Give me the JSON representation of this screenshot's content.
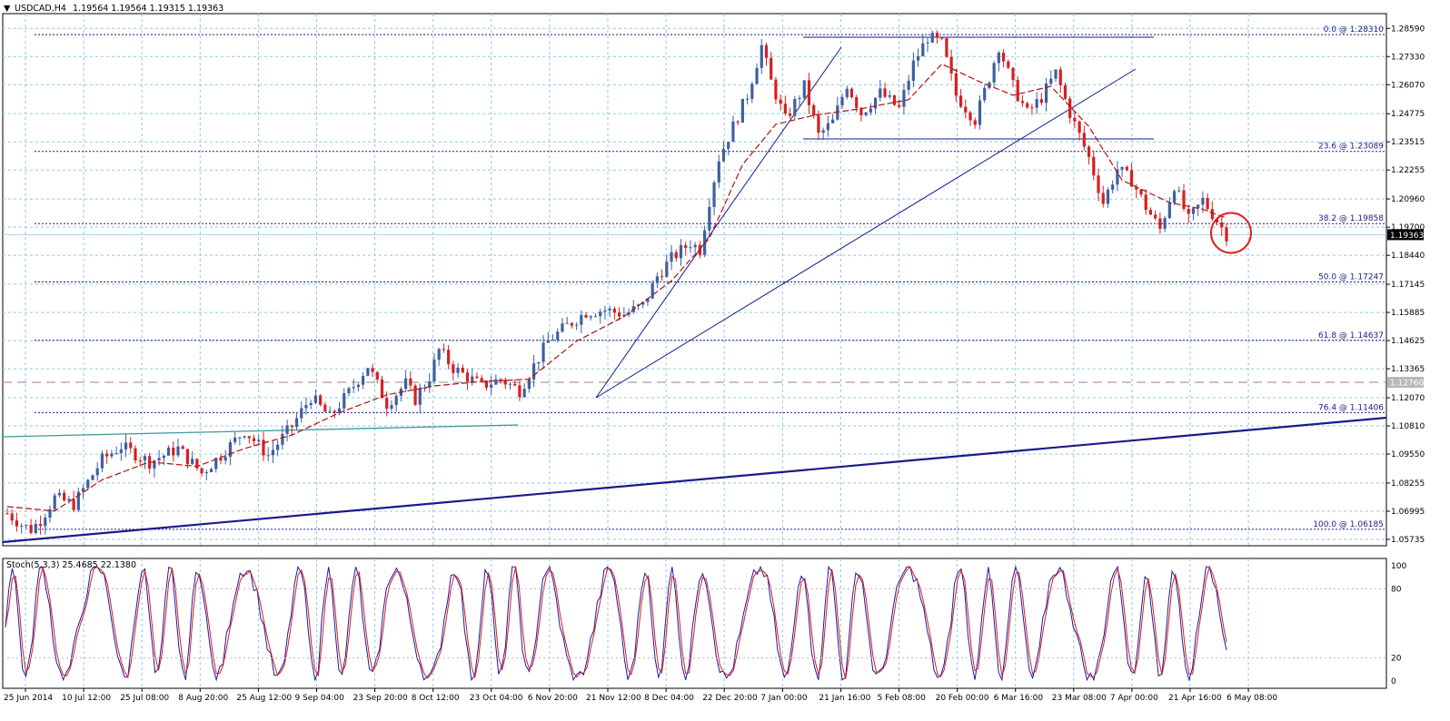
{
  "header": {
    "symbol_label": "USDCAD,H4",
    "ohlc_label": "1.19564 1.19564 1.19315 1.19363",
    "dropdown_glyph": "▼"
  },
  "stochastic": {
    "label": "Stoch(5,3,3) 25.4685 22.1380",
    "levels": [
      "100",
      "80",
      "20",
      "0"
    ]
  },
  "colors": {
    "background": "#ffffff",
    "grid": "#8ec9e3",
    "bull_candle": "#3f5f9f",
    "bear_candle": "#d42020",
    "moving_average": "#b01010",
    "fibo_line": "#1a1a8c",
    "trendline": "#1a1a8c",
    "channel_line": "#3a9a9a",
    "highlight_circle": "#e02020",
    "stoch_main": "#1a1aa8",
    "stoch_signal": "#d42020"
  },
  "chart_data": {
    "type": "candlestick",
    "symbol": "USDCAD",
    "timeframe": "H4",
    "x_tick_labels": [
      "25 Jun 2014",
      "10 Jul 12:00",
      "25 Jul 08:00",
      "8 Aug 20:00",
      "25 Aug 12:00",
      "9 Sep 04:00",
      "23 Sep 20:00",
      "8 Oct 12:00",
      "23 Oct 04:00",
      "6 Nov 20:00",
      "21 Nov 12:00",
      "8 Dec 04:00",
      "22 Dec 20:00",
      "7 Jan 00:00",
      "21 Jan 16:00",
      "5 Feb 08:00",
      "20 Feb 00:00",
      "6 Mar 16:00",
      "23 Mar 08:00",
      "7 Apr 00:00",
      "21 Apr 16:00",
      "6 May 08:00"
    ],
    "y_tick_labels": [
      "1.28590",
      "1.27330",
      "1.26070",
      "1.24775",
      "1.23515",
      "1.22255",
      "1.20960",
      "1.19700",
      "1.18440",
      "1.17145",
      "1.15885",
      "1.14625",
      "1.13365",
      "1.12070",
      "1.10810",
      "1.09550",
      "1.08255",
      "1.06995",
      "1.05735"
    ],
    "ylim": [
      1.0545,
      1.2925
    ],
    "current_price_label": "1.19363",
    "reference_price_label": "1.12760",
    "fibonacci_levels": [
      {
        "label": "0.0 @ 1.28310",
        "price": 1.2831
      },
      {
        "label": "23.6 @ 1.23089",
        "price": 1.23089
      },
      {
        "label": "38.2 @ 1.19858",
        "price": 1.19858
      },
      {
        "label": "50.0 @ 1.17247",
        "price": 1.17247
      },
      {
        "label": "61.8 @ 1.14637",
        "price": 1.14637
      },
      {
        "label": "76.4 @ 1.11406",
        "price": 1.11406
      },
      {
        "label": "100.0 @ 1.06185",
        "price": 1.06185
      }
    ],
    "price_path": [
      [
        0,
        1.069
      ],
      [
        3,
        1.064
      ],
      [
        5,
        1.0618
      ],
      [
        7,
        1.066
      ],
      [
        10,
        1.076
      ],
      [
        14,
        1.073
      ],
      [
        20,
        1.093
      ],
      [
        24,
        1.099
      ],
      [
        30,
        1.092
      ],
      [
        36,
        1.098
      ],
      [
        41,
        1.087
      ],
      [
        45,
        1.095
      ],
      [
        50,
        1.106
      ],
      [
        55,
        1.095
      ],
      [
        60,
        1.108
      ],
      [
        64,
        1.121
      ],
      [
        68,
        1.112
      ],
      [
        72,
        1.123
      ],
      [
        76,
        1.135
      ],
      [
        80,
        1.118
      ],
      [
        84,
        1.127
      ],
      [
        86,
        1.12
      ],
      [
        89,
        1.13
      ],
      [
        91,
        1.142
      ],
      [
        94,
        1.134
      ],
      [
        100,
        1.126
      ],
      [
        104,
        1.129
      ],
      [
        108,
        1.124
      ],
      [
        111,
        1.135
      ],
      [
        114,
        1.146
      ],
      [
        118,
        1.153
      ],
      [
        122,
        1.159
      ],
      [
        126,
        1.16
      ],
      [
        130,
        1.158
      ],
      [
        134,
        1.162
      ],
      [
        137,
        1.175
      ],
      [
        140,
        1.183
      ],
      [
        144,
        1.19
      ],
      [
        146,
        1.187
      ],
      [
        148,
        1.209
      ],
      [
        150,
        1.228
      ],
      [
        153,
        1.242
      ],
      [
        156,
        1.256
      ],
      [
        159,
        1.278
      ],
      [
        161,
        1.262
      ],
      [
        164,
        1.245
      ],
      [
        168,
        1.26
      ],
      [
        171,
        1.238
      ],
      [
        174,
        1.244
      ],
      [
        177,
        1.261
      ],
      [
        180,
        1.248
      ],
      [
        184,
        1.257
      ],
      [
        188,
        1.25
      ],
      [
        191,
        1.27
      ],
      [
        194,
        1.282
      ],
      [
        197,
        1.279
      ],
      [
        200,
        1.256
      ],
      [
        204,
        1.245
      ],
      [
        207,
        1.264
      ],
      [
        209,
        1.278
      ],
      [
        212,
        1.26
      ],
      [
        215,
        1.248
      ],
      [
        218,
        1.255
      ],
      [
        221,
        1.266
      ],
      [
        224,
        1.248
      ],
      [
        228,
        1.228
      ],
      [
        231,
        1.208
      ],
      [
        234,
        1.223
      ],
      [
        237,
        1.218
      ],
      [
        240,
        1.206
      ],
      [
        243,
        1.196
      ],
      [
        246,
        1.216
      ],
      [
        249,
        1.2
      ],
      [
        252,
        1.209
      ],
      [
        255,
        1.2
      ],
      [
        257,
        1.1936
      ]
    ],
    "ma_path": [
      [
        0,
        1.072
      ],
      [
        10,
        1.07
      ],
      [
        20,
        1.084
      ],
      [
        30,
        1.092
      ],
      [
        40,
        1.09
      ],
      [
        50,
        1.098
      ],
      [
        60,
        1.104
      ],
      [
        70,
        1.114
      ],
      [
        80,
        1.122
      ],
      [
        90,
        1.126
      ],
      [
        100,
        1.128
      ],
      [
        110,
        1.129
      ],
      [
        120,
        1.146
      ],
      [
        130,
        1.157
      ],
      [
        140,
        1.173
      ],
      [
        148,
        1.192
      ],
      [
        155,
        1.225
      ],
      [
        162,
        1.243
      ],
      [
        170,
        1.247
      ],
      [
        180,
        1.25
      ],
      [
        190,
        1.254
      ],
      [
        197,
        1.27
      ],
      [
        205,
        1.262
      ],
      [
        212,
        1.256
      ],
      [
        220,
        1.26
      ],
      [
        228,
        1.242
      ],
      [
        235,
        1.218
      ],
      [
        245,
        1.208
      ],
      [
        252,
        1.205
      ],
      [
        257,
        1.201
      ]
    ],
    "stoch_points": 360
  }
}
